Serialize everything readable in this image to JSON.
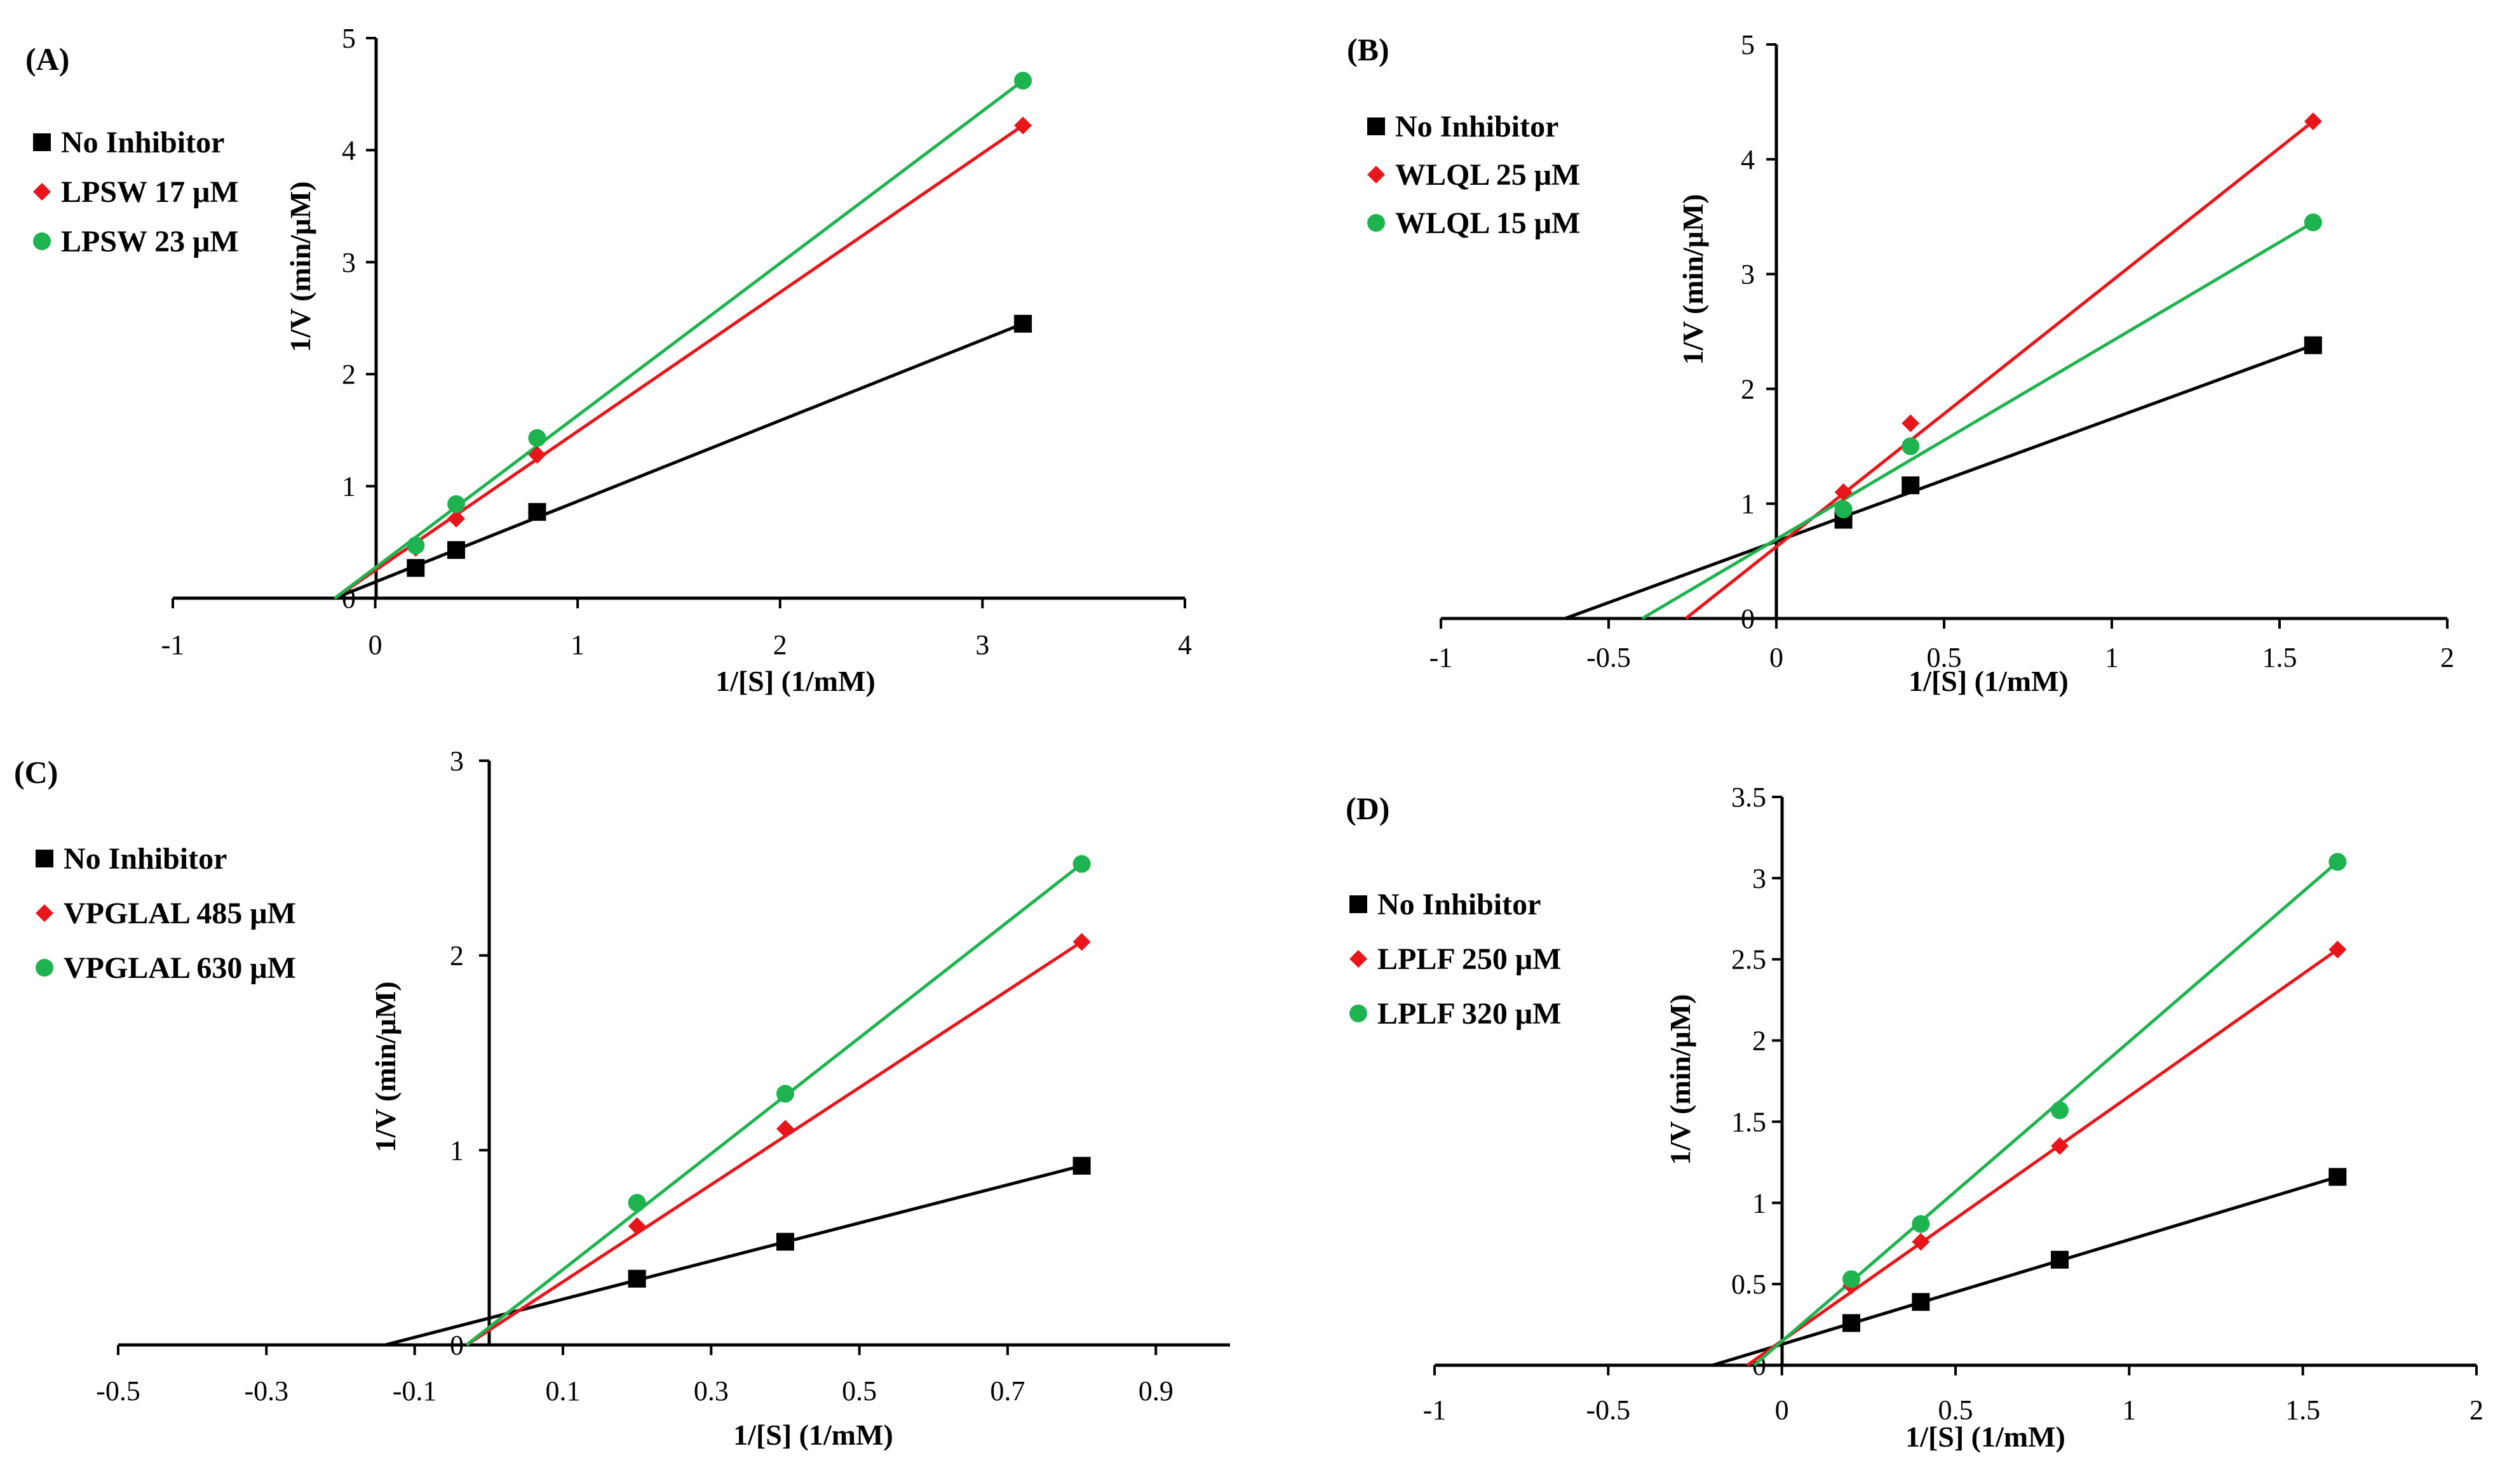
{
  "chart_data": [
    {
      "type": "scatter",
      "panel": "(A)",
      "title": "",
      "xlabel": "1/[S] (1/mM)",
      "ylabel": "1/V (min/μM)",
      "xlim": [
        -1,
        4
      ],
      "ylim": [
        0,
        5
      ],
      "xticks": [
        -1,
        0,
        1,
        2,
        3,
        4
      ],
      "yticks": [
        0,
        1,
        2,
        3,
        4,
        5
      ],
      "xtick_labels": [
        "-1",
        "0",
        "1",
        "2",
        "3",
        "4"
      ],
      "ytick_labels": [
        "0",
        "1",
        "2",
        "3",
        "4",
        "5"
      ],
      "legend_position": "left",
      "series": [
        {
          "name": "No Inhibitor",
          "color": "#000000",
          "marker": "square",
          "x": [
            0.2,
            0.4,
            0.8,
            3.2
          ],
          "y": [
            0.27,
            0.43,
            0.77,
            2.45
          ],
          "fit": [
            [
              -0.2,
              0.0
            ],
            [
              3.2,
              2.45
            ]
          ]
        },
        {
          "name": "LPSW 17 μM",
          "color": "#e8161b",
          "marker": "diamond",
          "x": [
            0.2,
            0.4,
            0.8,
            3.2
          ],
          "y": [
            0.45,
            0.71,
            1.28,
            4.22
          ],
          "fit": [
            [
              -0.2,
              0.0
            ],
            [
              3.2,
              4.22
            ]
          ]
        },
        {
          "name": "LPSW 23 μM",
          "color": "#1db34f",
          "marker": "circle",
          "x": [
            0.2,
            0.4,
            0.8,
            3.2
          ],
          "y": [
            0.47,
            0.84,
            1.43,
            4.62
          ],
          "fit": [
            [
              -0.2,
              0.0
            ],
            [
              3.2,
              4.62
            ]
          ]
        }
      ]
    },
    {
      "type": "scatter",
      "panel": "(B)",
      "title": "",
      "xlabel": "1/[S] (1/mM)",
      "ylabel": "1/V (min/μM)",
      "xlim": [
        -1,
        2
      ],
      "ylim": [
        0,
        5
      ],
      "xticks": [
        -1,
        -0.5,
        0,
        0.5,
        1,
        1.5,
        2
      ],
      "yticks": [
        0,
        1,
        2,
        3,
        4,
        5
      ],
      "xtick_labels": [
        "-1",
        "-0.5",
        "0",
        "0.5",
        "1",
        "1.5",
        "2"
      ],
      "ytick_labels": [
        "0",
        "1",
        "2",
        "3",
        "4",
        "5"
      ],
      "legend_position": "top-left",
      "series": [
        {
          "name": "No Inhibitor",
          "color": "#000000",
          "marker": "square",
          "x": [
            0.2,
            0.4,
            1.6
          ],
          "y": [
            0.86,
            1.16,
            2.38
          ],
          "fit": [
            [
              -0.63,
              0.0
            ],
            [
              1.6,
              2.38
            ]
          ]
        },
        {
          "name": "WLQL 25 μM",
          "color": "#e8161b",
          "marker": "diamond",
          "x": [
            0.2,
            0.4,
            1.6
          ],
          "y": [
            1.1,
            1.7,
            4.33
          ],
          "fit": [
            [
              -0.27,
              0.0
            ],
            [
              1.6,
              4.33
            ]
          ]
        },
        {
          "name": "WLQL 15 μM",
          "color": "#1db34f",
          "marker": "circle",
          "x": [
            0.2,
            0.4,
            1.6
          ],
          "y": [
            0.95,
            1.5,
            3.45
          ],
          "fit": [
            [
              -0.4,
              0.0
            ],
            [
              1.6,
              3.45
            ]
          ]
        }
      ]
    },
    {
      "type": "scatter",
      "panel": "(C)",
      "title": "",
      "xlabel": "1/[S] (1/mM)",
      "ylabel": "1/V (min/μM)",
      "xlim": [
        -0.5,
        1.0
      ],
      "ylim": [
        0,
        3
      ],
      "xticks": [
        -0.5,
        -0.3,
        -0.1,
        0.1,
        0.3,
        0.5,
        0.7,
        0.9
      ],
      "yticks": [
        0,
        1,
        2,
        3
      ],
      "xtick_labels": [
        "-0.5",
        "-0.3",
        "-0.1",
        "0.1",
        "0.3",
        "0.5",
        "0.7",
        "0.9"
      ],
      "ytick_labels": [
        "0",
        "1",
        "2",
        "3"
      ],
      "legend_position": "left",
      "series": [
        {
          "name": "No Inhibitor",
          "color": "#000000",
          "marker": "square",
          "x": [
            0.2,
            0.4,
            0.8
          ],
          "y": [
            0.34,
            0.53,
            0.92
          ],
          "fit": [
            [
              -0.14,
              0.0
            ],
            [
              0.8,
              0.92
            ]
          ]
        },
        {
          "name": "VPGLAL 485 μM",
          "color": "#e8161b",
          "marker": "diamond",
          "x": [
            0.2,
            0.4,
            0.8
          ],
          "y": [
            0.61,
            1.11,
            2.07
          ],
          "fit": [
            [
              -0.03,
              0.0
            ],
            [
              0.8,
              2.07
            ]
          ]
        },
        {
          "name": "VPGLAL 630 μM",
          "color": "#1db34f",
          "marker": "circle",
          "x": [
            0.2,
            0.4,
            0.8
          ],
          "y": [
            0.73,
            1.29,
            2.47
          ],
          "fit": [
            [
              -0.03,
              0.0
            ],
            [
              0.8,
              2.47
            ]
          ]
        }
      ]
    },
    {
      "type": "scatter",
      "panel": "(D)",
      "title": "",
      "xlabel": "1/[S] (1/mM)",
      "ylabel": "1/V (min/μM)",
      "xlim": [
        -1,
        2
      ],
      "ylim": [
        0,
        3.5
      ],
      "xticks": [
        -1,
        -0.5,
        0,
        0.5,
        1,
        1.5,
        2
      ],
      "yticks": [
        0,
        0.5,
        1,
        1.5,
        2,
        2.5,
        3,
        3.5
      ],
      "xtick_labels": [
        "-1",
        "-0.5",
        "0",
        "0.5",
        "1",
        "1.5",
        "2"
      ],
      "ytick_labels": [
        "0",
        "0.5",
        "1",
        "1.5",
        "2",
        "2.5",
        "3",
        "3.5"
      ],
      "legend_position": "left",
      "series": [
        {
          "name": "No Inhibitor",
          "color": "#000000",
          "marker": "square",
          "x": [
            0.2,
            0.4,
            0.8,
            1.6
          ],
          "y": [
            0.26,
            0.39,
            0.65,
            1.16
          ],
          "fit": [
            [
              -0.2,
              0.0
            ],
            [
              1.6,
              1.16
            ]
          ]
        },
        {
          "name": "LPLF 250 μM",
          "color": "#e8161b",
          "marker": "diamond",
          "x": [
            0.2,
            0.4,
            0.8,
            1.6
          ],
          "y": [
            0.49,
            0.76,
            1.35,
            2.56
          ],
          "fit": [
            [
              -0.1,
              0.0
            ],
            [
              1.6,
              2.56
            ]
          ]
        },
        {
          "name": "LPLF 320 μM",
          "color": "#1db34f",
          "marker": "circle",
          "x": [
            0.2,
            0.4,
            0.8,
            1.6
          ],
          "y": [
            0.53,
            0.87,
            1.57,
            3.1
          ],
          "fit": [
            [
              -0.08,
              0.0
            ],
            [
              1.6,
              3.1
            ]
          ]
        }
      ]
    }
  ]
}
